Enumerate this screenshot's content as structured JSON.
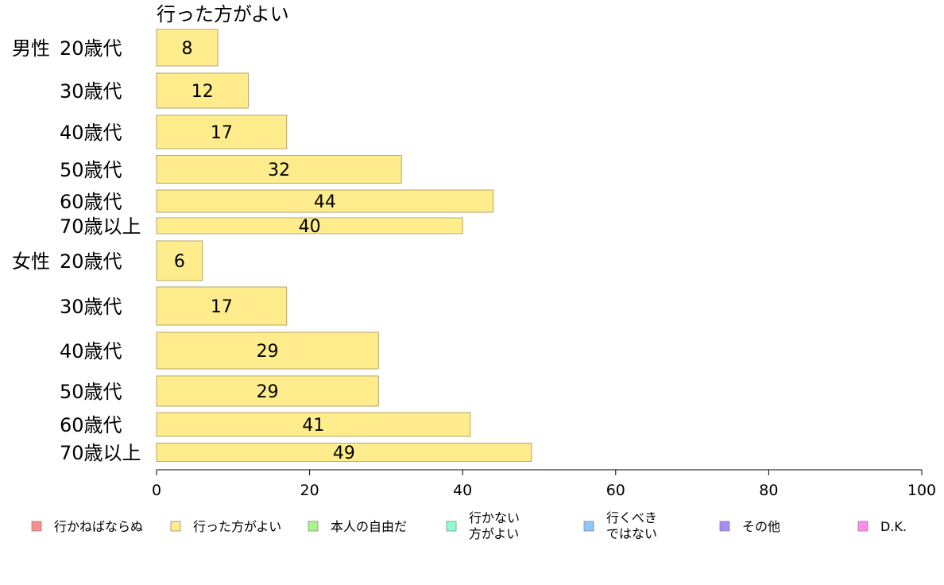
{
  "chart_data": {
    "type": "bar",
    "orientation": "horizontal",
    "title": "",
    "series_header": "行った方がよい",
    "xlim": [
      0,
      100
    ],
    "xticks": [
      0,
      20,
      40,
      60,
      80,
      100
    ],
    "grid": false,
    "legend_placement": "bottom",
    "groups": [
      {
        "name": "男性",
        "categories": [
          "20歳代",
          "30歳代",
          "40歳代",
          "50歳代",
          "60歳代",
          "70歳以上"
        ],
        "values": [
          8,
          12,
          17,
          32,
          44,
          40
        ]
      },
      {
        "name": "女性",
        "categories": [
          "20歳代",
          "30歳代",
          "40歳代",
          "50歳代",
          "60歳代",
          "70歳以上"
        ],
        "values": [
          6,
          17,
          29,
          29,
          41,
          49
        ]
      }
    ],
    "legend": [
      {
        "label": "行かねばならぬ",
        "color": "#ff8c8c"
      },
      {
        "label": "行った方がよい",
        "color": "#ffec8c"
      },
      {
        "label": "本人の自由だ",
        "color": "#a8f58c"
      },
      {
        "label": "行かない\n方がよい",
        "color": "#8cffd2"
      },
      {
        "label": "行くべき\nではない",
        "color": "#8cc8ff"
      },
      {
        "label": "その他",
        "color": "#a88cf5"
      },
      {
        "label": "D.K.",
        "color": "#ff8cf0"
      }
    ],
    "bar_color": "#ffec8c",
    "bar_stroke": "#b4a86a"
  }
}
